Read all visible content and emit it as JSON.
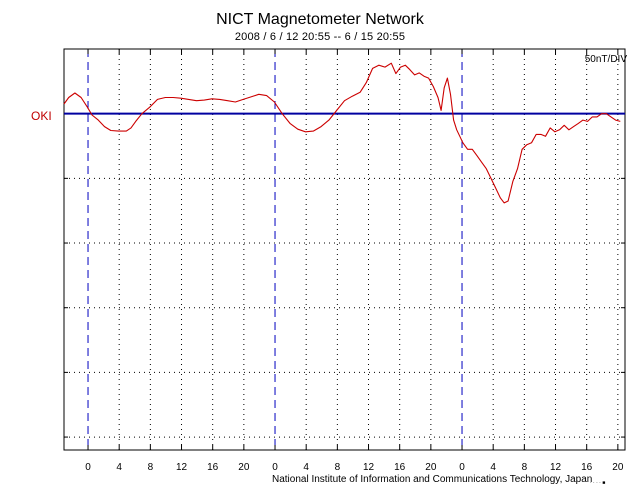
{
  "chart_data": {
    "type": "line",
    "title": "NICT Magnetometer Network",
    "subtitle": "2008 / 6 / 12   20:55 --  6 / 15   20:55",
    "scale_label": "50nT/DIV",
    "station": "OKI",
    "credit": "National Institute of Information and Communications Technology, Japan",
    "marker_text": "· ·  ·  · ■",
    "xlim": [
      0,
      72
    ],
    "ylim": [
      -5.2,
      1.0
    ],
    "day_boundaries": [
      3.083,
      27.083,
      51.083
    ],
    "x_ticks": [
      {
        "x": 3.083,
        "label": "0"
      },
      {
        "x": 7.083,
        "label": "4"
      },
      {
        "x": 11.083,
        "label": "8"
      },
      {
        "x": 15.083,
        "label": "12"
      },
      {
        "x": 19.083,
        "label": "16"
      },
      {
        "x": 23.083,
        "label": "20"
      },
      {
        "x": 27.083,
        "label": "0"
      },
      {
        "x": 31.083,
        "label": "4"
      },
      {
        "x": 35.083,
        "label": "8"
      },
      {
        "x": 39.083,
        "label": "12"
      },
      {
        "x": 43.083,
        "label": "16"
      },
      {
        "x": 47.083,
        "label": "20"
      },
      {
        "x": 51.083,
        "label": "0"
      },
      {
        "x": 55.083,
        "label": "4"
      },
      {
        "x": 59.083,
        "label": "8"
      },
      {
        "x": 63.083,
        "label": "12"
      },
      {
        "x": 67.083,
        "label": "16"
      },
      {
        "x": 71.083,
        "label": "20"
      }
    ],
    "y_gridlines": [
      -5,
      -4,
      -3,
      -2,
      -1
    ],
    "grid": true,
    "baseline_y": 0,
    "series": [
      {
        "color": "#cc0000",
        "x": [
          0,
          0.6,
          1.4,
          2.2,
          3.0,
          3.6,
          4.4,
          5.2,
          6.0,
          7.0,
          8.0,
          8.6,
          9.2,
          10.0,
          11.0,
          12.0,
          13.0,
          14.0,
          15.0,
          16.0,
          17.0,
          18.0,
          19.0,
          20.0,
          21.0,
          22.0,
          23.0,
          24.0,
          25.0,
          26.0,
          27.0,
          28.0,
          29.0,
          30.0,
          31.0,
          32.0,
          33.0,
          34.0,
          35.0,
          36.0,
          37.0,
          38.0,
          38.8,
          39.6,
          40.4,
          41.2,
          42.0,
          42.6,
          43.2,
          43.8,
          44.4,
          45.0,
          45.6,
          46.2,
          46.8,
          47.4,
          48.0,
          48.4,
          48.8,
          49.2,
          49.6,
          50.0,
          50.4,
          50.8,
          51.2,
          51.8,
          52.4,
          53.0,
          53.6,
          54.2,
          54.8,
          55.4,
          56.0,
          56.5,
          57.0,
          57.6,
          58.2,
          58.8,
          59.4,
          60.0,
          60.6,
          61.2,
          61.8,
          62.4,
          63.0,
          63.6,
          64.2,
          64.8,
          65.4,
          66.0,
          66.6,
          67.2,
          67.8,
          68.4,
          69.0,
          69.6,
          70.2,
          70.8,
          71.4
        ],
        "y": [
          0.15,
          0.25,
          0.32,
          0.25,
          0.1,
          -0.02,
          -0.1,
          -0.2,
          -0.26,
          -0.27,
          -0.27,
          -0.22,
          -0.12,
          0.0,
          0.1,
          0.22,
          0.25,
          0.25,
          0.24,
          0.22,
          0.2,
          0.21,
          0.23,
          0.22,
          0.2,
          0.18,
          0.22,
          0.26,
          0.3,
          0.28,
          0.18,
          0.0,
          -0.15,
          -0.24,
          -0.28,
          -0.27,
          -0.2,
          -0.1,
          0.05,
          0.2,
          0.27,
          0.33,
          0.48,
          0.7,
          0.75,
          0.72,
          0.78,
          0.62,
          0.72,
          0.75,
          0.68,
          0.6,
          0.63,
          0.58,
          0.55,
          0.42,
          0.25,
          0.05,
          0.4,
          0.55,
          0.3,
          -0.1,
          -0.25,
          -0.35,
          -0.45,
          -0.55,
          -0.55,
          -0.65,
          -0.75,
          -0.85,
          -1.0,
          -1.15,
          -1.3,
          -1.38,
          -1.35,
          -1.05,
          -0.85,
          -0.55,
          -0.48,
          -0.45,
          -0.32,
          -0.32,
          -0.35,
          -0.22,
          -0.28,
          -0.25,
          -0.18,
          -0.25,
          -0.2,
          -0.15,
          -0.1,
          -0.12,
          -0.05,
          -0.05,
          -0.0,
          0.0,
          -0.05,
          -0.1,
          -0.12
        ]
      }
    ]
  }
}
